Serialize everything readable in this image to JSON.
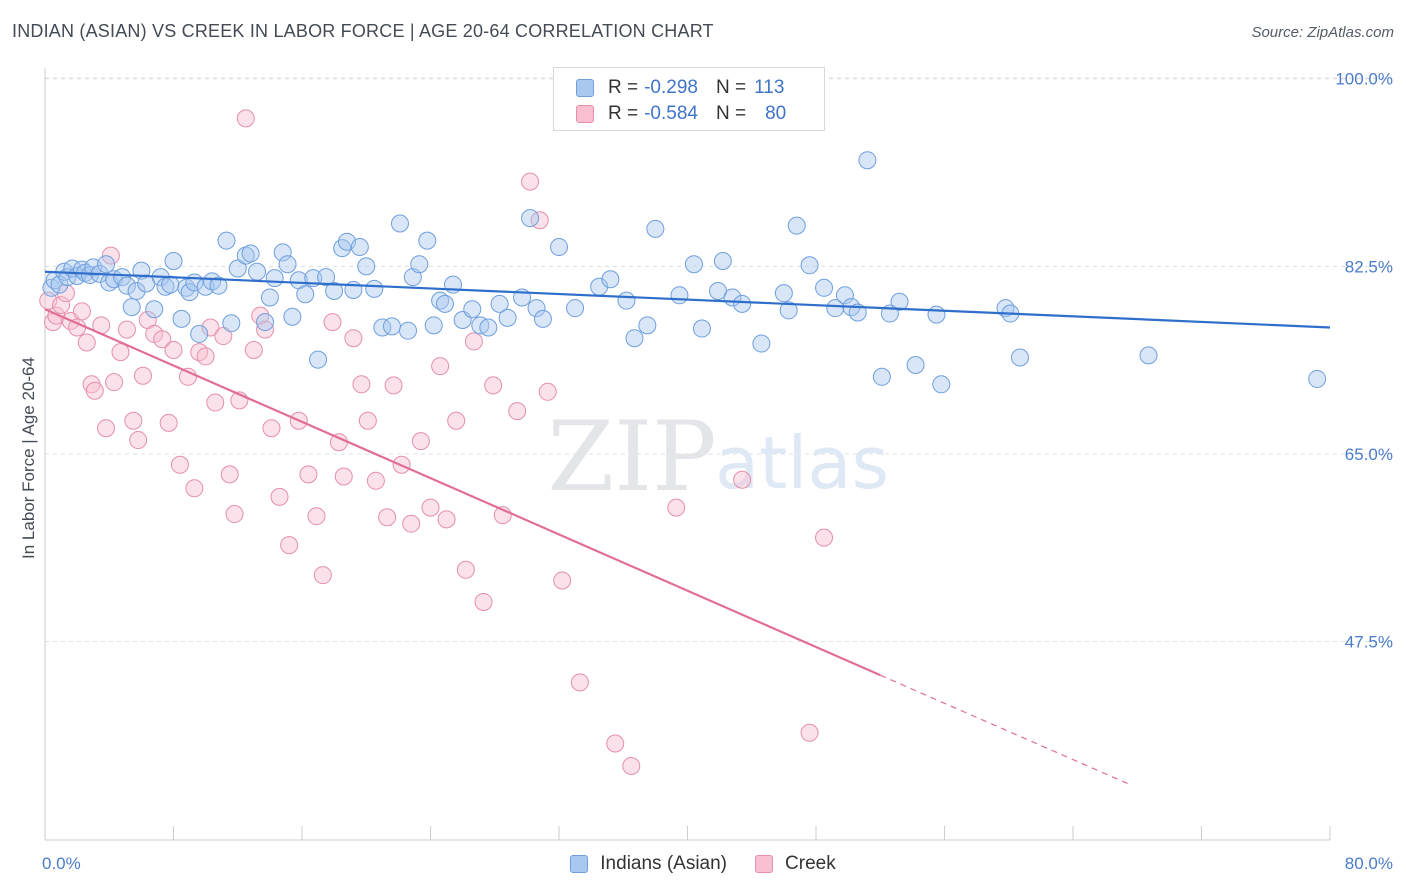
{
  "header": {
    "title": "INDIAN (ASIAN) VS CREEK IN LABOR FORCE | AGE 20-64 CORRELATION CHART",
    "source": "Source: ZipAtlas.com"
  },
  "watermark": {
    "zip": "ZIP",
    "atlas": "atlas"
  },
  "legend_top": [
    {
      "r_label": "R =",
      "r_value": "-0.298",
      "n_label": "N =",
      "n_value": "113",
      "fill": "#a9c8f0",
      "stroke": "#6f9fdd"
    },
    {
      "r_label": "R =",
      "r_value": "-0.584",
      "n_label": "N =",
      "n_value": "80",
      "fill": "#f7bfd0",
      "stroke": "#e58fab"
    }
  ],
  "legend_bottom": [
    {
      "label": "Indians (Asian)",
      "fill": "#a9c8f0",
      "stroke": "#6f9fdd"
    },
    {
      "label": "Creek",
      "fill": "#f7bfd0",
      "stroke": "#e58fab"
    }
  ],
  "chart_data": {
    "type": "scatter",
    "title": "INDIAN (ASIAN) VS CREEK IN LABOR FORCE | AGE 20-64 CORRELATION CHART",
    "ylabel": "In Labor Force | Age 20-64",
    "xlabel": "",
    "xlim": [
      0,
      80
    ],
    "ylim": [
      29,
      101
    ],
    "x_tick_labels": [
      "0.0%",
      "80.0%"
    ],
    "y_ticks": [
      100.0,
      82.5,
      65.0,
      47.5
    ],
    "y_tick_labels": [
      "100.0%",
      "82.5%",
      "65.0%",
      "47.5%"
    ],
    "grid": true,
    "legend": "top-center",
    "series": [
      {
        "name": "Indians (Asian)",
        "color": "#5b93d9",
        "line_color": "#2f6fcb",
        "trend": {
          "x": [
            0,
            80
          ],
          "y": [
            82.0,
            76.8
          ]
        },
        "points": [
          [
            0.4,
            80.5
          ],
          [
            0.6,
            81.2
          ],
          [
            0.9,
            80.8
          ],
          [
            1.2,
            82.0
          ],
          [
            1.4,
            81.5
          ],
          [
            1.7,
            82.3
          ],
          [
            2.0,
            81.6
          ],
          [
            2.3,
            82.2
          ],
          [
            2.5,
            81.9
          ],
          [
            2.8,
            81.7
          ],
          [
            3.0,
            82.4
          ],
          [
            3.4,
            81.8
          ],
          [
            3.8,
            82.7
          ],
          [
            4.0,
            81.0
          ],
          [
            4.3,
            81.3
          ],
          [
            4.8,
            81.5
          ],
          [
            5.1,
            80.7
          ],
          [
            5.4,
            78.7
          ],
          [
            5.7,
            80.2
          ],
          [
            6.0,
            82.1
          ],
          [
            6.3,
            80.9
          ],
          [
            6.8,
            78.5
          ],
          [
            7.2,
            81.5
          ],
          [
            7.5,
            80.6
          ],
          [
            7.8,
            80.8
          ],
          [
            8.0,
            83.0
          ],
          [
            8.5,
            77.6
          ],
          [
            8.8,
            80.5
          ],
          [
            9.0,
            80.1
          ],
          [
            9.3,
            81.0
          ],
          [
            9.6,
            76.2
          ],
          [
            10.0,
            80.6
          ],
          [
            10.4,
            81.1
          ],
          [
            10.8,
            80.7
          ],
          [
            11.3,
            84.9
          ],
          [
            11.6,
            77.2
          ],
          [
            12.0,
            82.3
          ],
          [
            12.5,
            83.5
          ],
          [
            12.8,
            83.7
          ],
          [
            13.2,
            82.0
          ],
          [
            13.7,
            77.3
          ],
          [
            14.0,
            79.6
          ],
          [
            14.3,
            81.4
          ],
          [
            14.8,
            83.8
          ],
          [
            15.1,
            82.7
          ],
          [
            15.4,
            77.8
          ],
          [
            15.8,
            81.2
          ],
          [
            16.2,
            79.9
          ],
          [
            16.7,
            81.4
          ],
          [
            17.0,
            73.8
          ],
          [
            17.5,
            81.5
          ],
          [
            18.0,
            80.2
          ],
          [
            18.5,
            84.2
          ],
          [
            18.8,
            84.8
          ],
          [
            19.2,
            80.3
          ],
          [
            19.6,
            84.3
          ],
          [
            20.0,
            82.5
          ],
          [
            20.5,
            80.4
          ],
          [
            21.0,
            76.8
          ],
          [
            21.6,
            76.9
          ],
          [
            22.1,
            86.5
          ],
          [
            22.6,
            76.5
          ],
          [
            22.9,
            81.5
          ],
          [
            23.3,
            82.7
          ],
          [
            23.8,
            84.9
          ],
          [
            24.2,
            77.0
          ],
          [
            24.6,
            79.3
          ],
          [
            24.9,
            79.0
          ],
          [
            25.4,
            80.8
          ],
          [
            26.0,
            77.5
          ],
          [
            26.6,
            78.5
          ],
          [
            27.1,
            77.0
          ],
          [
            27.6,
            76.8
          ],
          [
            28.3,
            79.0
          ],
          [
            28.8,
            77.7
          ],
          [
            29.7,
            79.6
          ],
          [
            30.2,
            87.0
          ],
          [
            30.6,
            78.6
          ],
          [
            31.0,
            77.6
          ],
          [
            32.0,
            84.3
          ],
          [
            33.0,
            78.6
          ],
          [
            34.5,
            80.6
          ],
          [
            35.2,
            81.3
          ],
          [
            36.2,
            79.3
          ],
          [
            36.7,
            75.8
          ],
          [
            37.5,
            77.0
          ],
          [
            38.0,
            86.0
          ],
          [
            39.5,
            79.8
          ],
          [
            40.4,
            82.7
          ],
          [
            40.9,
            76.7
          ],
          [
            41.9,
            80.2
          ],
          [
            42.2,
            83.0
          ],
          [
            42.8,
            79.6
          ],
          [
            43.4,
            79.0
          ],
          [
            44.6,
            75.3
          ],
          [
            46.0,
            80.0
          ],
          [
            46.3,
            78.4
          ],
          [
            46.8,
            86.3
          ],
          [
            47.6,
            82.6
          ],
          [
            48.5,
            80.5
          ],
          [
            49.2,
            78.6
          ],
          [
            49.8,
            79.8
          ],
          [
            50.2,
            78.7
          ],
          [
            50.6,
            78.2
          ],
          [
            51.2,
            92.4
          ],
          [
            52.1,
            72.2
          ],
          [
            52.6,
            78.1
          ],
          [
            53.2,
            79.2
          ],
          [
            54.2,
            73.3
          ],
          [
            55.5,
            78.0
          ],
          [
            55.8,
            71.5
          ],
          [
            59.8,
            78.6
          ],
          [
            60.1,
            78.1
          ],
          [
            60.7,
            74.0
          ],
          [
            68.7,
            74.2
          ],
          [
            79.2,
            72.0
          ]
        ]
      },
      {
        "name": "Creek",
        "color": "#ee8fb0",
        "line_color": "#e06e98",
        "trend": {
          "x": [
            0,
            80
          ],
          "y": [
            78.5,
            26.0
          ]
        },
        "trend_solid_until_x": 52.0,
        "points": [
          [
            0.2,
            79.3
          ],
          [
            0.5,
            77.3
          ],
          [
            0.7,
            77.9
          ],
          [
            1.0,
            78.9
          ],
          [
            1.3,
            80.0
          ],
          [
            1.6,
            77.4
          ],
          [
            2.0,
            76.8
          ],
          [
            2.3,
            78.3
          ],
          [
            2.6,
            75.4
          ],
          [
            2.9,
            71.5
          ],
          [
            3.1,
            70.9
          ],
          [
            3.5,
            77.0
          ],
          [
            3.8,
            67.4
          ],
          [
            4.1,
            83.5
          ],
          [
            4.3,
            71.7
          ],
          [
            4.7,
            74.5
          ],
          [
            5.1,
            76.6
          ],
          [
            5.5,
            68.1
          ],
          [
            5.8,
            66.3
          ],
          [
            6.1,
            72.3
          ],
          [
            6.4,
            77.5
          ],
          [
            6.8,
            76.2
          ],
          [
            7.3,
            75.7
          ],
          [
            7.7,
            67.9
          ],
          [
            8.0,
            74.7
          ],
          [
            8.4,
            64.0
          ],
          [
            8.9,
            72.2
          ],
          [
            9.3,
            61.8
          ],
          [
            9.6,
            74.5
          ],
          [
            10.0,
            74.1
          ],
          [
            10.3,
            76.8
          ],
          [
            10.6,
            69.8
          ],
          [
            11.1,
            76.0
          ],
          [
            11.5,
            63.1
          ],
          [
            11.8,
            59.4
          ],
          [
            12.1,
            70.0
          ],
          [
            12.5,
            96.3
          ],
          [
            13.0,
            74.7
          ],
          [
            13.4,
            77.9
          ],
          [
            13.7,
            76.6
          ],
          [
            14.1,
            67.4
          ],
          [
            14.6,
            61.0
          ],
          [
            15.2,
            56.5
          ],
          [
            15.8,
            68.1
          ],
          [
            16.4,
            63.1
          ],
          [
            16.9,
            59.2
          ],
          [
            17.3,
            53.7
          ],
          [
            17.9,
            77.3
          ],
          [
            18.3,
            66.1
          ],
          [
            18.6,
            62.9
          ],
          [
            19.2,
            75.8
          ],
          [
            19.7,
            71.5
          ],
          [
            20.1,
            68.1
          ],
          [
            20.6,
            62.5
          ],
          [
            21.3,
            59.1
          ],
          [
            21.7,
            71.4
          ],
          [
            22.2,
            64.0
          ],
          [
            22.8,
            58.5
          ],
          [
            23.4,
            66.2
          ],
          [
            24.0,
            60.0
          ],
          [
            24.6,
            73.2
          ],
          [
            25.0,
            58.9
          ],
          [
            25.6,
            68.1
          ],
          [
            26.2,
            54.2
          ],
          [
            26.7,
            75.5
          ],
          [
            27.3,
            51.2
          ],
          [
            27.9,
            71.4
          ],
          [
            28.5,
            59.3
          ],
          [
            29.4,
            69.0
          ],
          [
            30.2,
            90.4
          ],
          [
            30.8,
            86.8
          ],
          [
            31.3,
            70.8
          ],
          [
            32.2,
            53.2
          ],
          [
            33.3,
            43.7
          ],
          [
            35.5,
            38.0
          ],
          [
            36.5,
            35.9
          ],
          [
            39.3,
            60.0
          ],
          [
            43.4,
            62.6
          ],
          [
            47.6,
            39.0
          ],
          [
            48.5,
            57.2
          ]
        ]
      }
    ]
  }
}
